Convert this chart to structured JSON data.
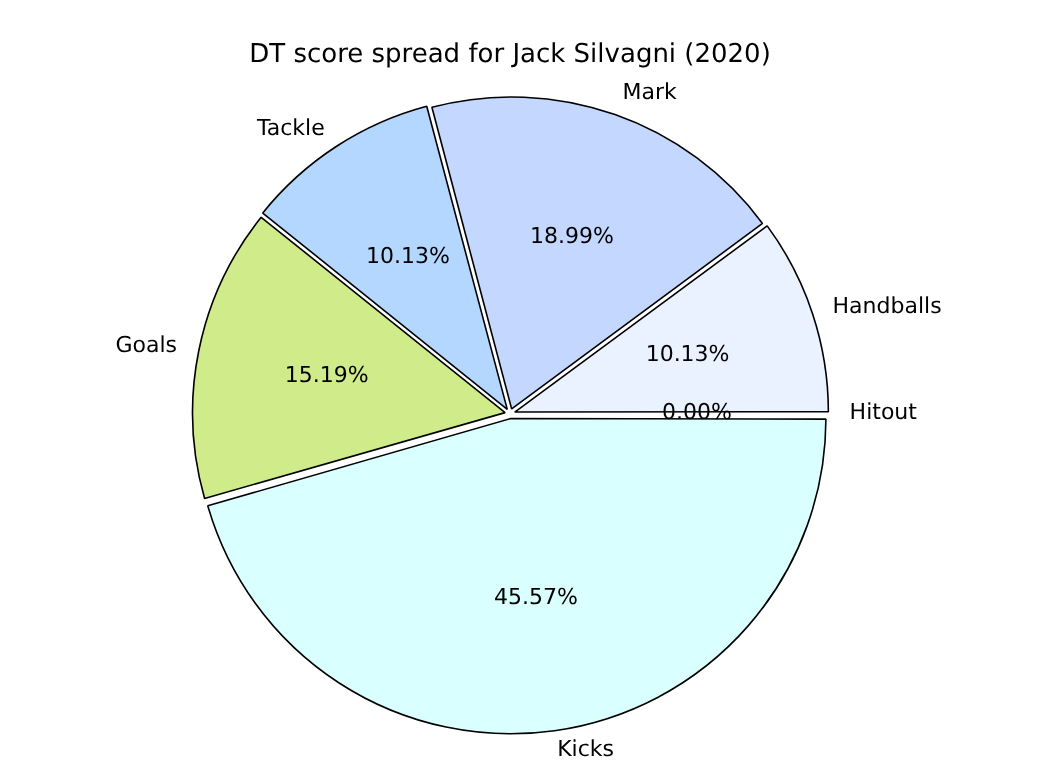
{
  "chart_data": {
    "type": "pie",
    "title": "DT score spread for Jack Silvagni (2020)",
    "categories": [
      "Kicks",
      "Goals",
      "Tackle",
      "Mark",
      "Handballs",
      "Hitout"
    ],
    "values": [
      45.57,
      15.19,
      10.13,
      18.99,
      10.13,
      0
    ],
    "colors": [
      "#d9ffff",
      "#d0eb8a",
      "#b3d7ff",
      "#c4d8ff",
      "#eaf1ff",
      "#e0e0e0"
    ],
    "value_labels": [
      "45.57%",
      "15.19%",
      "10.13%",
      "18.99%",
      "10.13%",
      "0.00%"
    ],
    "legend": false
  }
}
